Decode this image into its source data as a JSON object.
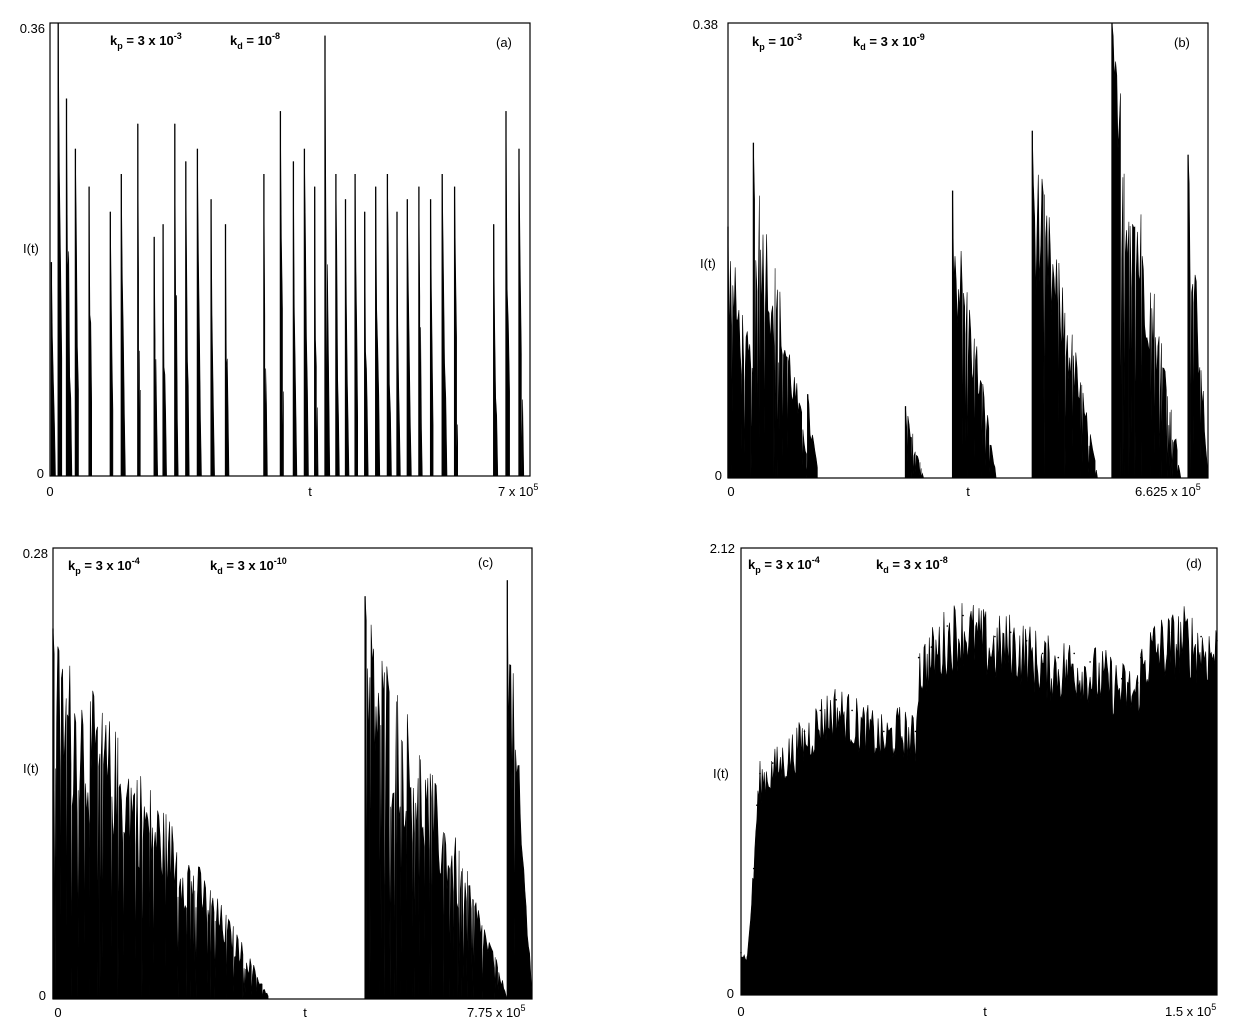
{
  "figure": {
    "panels": [
      {
        "panel_label": "(a)",
        "ylabel": "I(t)",
        "xlabel": "t",
        "y_top": "0.36",
        "y_bottom": "0",
        "x_left": "0",
        "x_right_mant": "7 x 10",
        "x_right_exp": "5",
        "kp_val": "= 3 x 10",
        "kp_exp": "-3",
        "kd_val": "= 10",
        "kd_exp": "-8"
      },
      {
        "panel_label": "(b)",
        "ylabel": "I(t)",
        "xlabel": "t",
        "y_top": "0.38",
        "y_bottom": "0",
        "x_left": "0",
        "x_right_mant": "6.625 x 10",
        "x_right_exp": "5",
        "kp_val": "= 10",
        "kp_exp": "-3",
        "kd_val": "= 3 x 10",
        "kd_exp": "-9"
      },
      {
        "panel_label": "(c)",
        "ylabel": "I(t)",
        "xlabel": "t",
        "y_top": "0.28",
        "y_bottom": "0",
        "x_left": "0",
        "x_right_mant": "7.75 x 10",
        "x_right_exp": "5",
        "kp_val": "= 3 x 10",
        "kp_exp": "-4",
        "kd_val": "= 3 x 10",
        "kd_exp": "-10"
      },
      {
        "panel_label": "(d)",
        "ylabel": "I(t)",
        "xlabel": "t",
        "y_top": "2.12",
        "y_bottom": "0",
        "x_left": "0",
        "x_right_mant": "1.5 x 10",
        "x_right_exp": "5",
        "kp_val": "= 3 x 10",
        "kp_exp": "-4",
        "kd_val": "= 3 x 10",
        "kd_exp": "-8"
      }
    ]
  },
  "chart_data": [
    {
      "type": "bar",
      "title": "",
      "xlabel": "t",
      "ylabel": "I(t)",
      "xlim": [
        0,
        700000
      ],
      "ylim": [
        0,
        0.36
      ],
      "grid": false,
      "annotation": "kp = 3 x 10^-3, kd = 10^-8",
      "bursts": [
        {
          "t": 2000,
          "peak": 0.17,
          "duration": 6000
        },
        {
          "t": 12000,
          "peak": 0.36,
          "duration": 7000
        },
        {
          "t": 24000,
          "peak": 0.3,
          "duration": 8000
        },
        {
          "t": 37000,
          "peak": 0.26,
          "duration": 6000
        },
        {
          "t": 57000,
          "peak": 0.23,
          "duration": 5000
        },
        {
          "t": 88000,
          "peak": 0.21,
          "duration": 5000
        },
        {
          "t": 104000,
          "peak": 0.24,
          "duration": 6000
        },
        {
          "t": 128000,
          "peak": 0.28,
          "duration": 5000
        },
        {
          "t": 152000,
          "peak": 0.19,
          "duration": 5000
        },
        {
          "t": 165000,
          "peak": 0.2,
          "duration": 5000
        },
        {
          "t": 182000,
          "peak": 0.28,
          "duration": 5000
        },
        {
          "t": 198000,
          "peak": 0.25,
          "duration": 5000
        },
        {
          "t": 215000,
          "peak": 0.26,
          "duration": 6000
        },
        {
          "t": 235000,
          "peak": 0.22,
          "duration": 5000
        },
        {
          "t": 256000,
          "peak": 0.2,
          "duration": 5000
        },
        {
          "t": 312000,
          "peak": 0.24,
          "duration": 5000
        },
        {
          "t": 336000,
          "peak": 0.29,
          "duration": 6000
        },
        {
          "t": 355000,
          "peak": 0.25,
          "duration": 5000
        },
        {
          "t": 371000,
          "peak": 0.26,
          "duration": 6000
        },
        {
          "t": 386000,
          "peak": 0.23,
          "duration": 5000
        },
        {
          "t": 401000,
          "peak": 0.35,
          "duration": 7000
        },
        {
          "t": 417000,
          "peak": 0.24,
          "duration": 5000
        },
        {
          "t": 431000,
          "peak": 0.22,
          "duration": 5000
        },
        {
          "t": 445000,
          "peak": 0.24,
          "duration": 5000
        },
        {
          "t": 459000,
          "peak": 0.21,
          "duration": 5000
        },
        {
          "t": 475000,
          "peak": 0.23,
          "duration": 6000
        },
        {
          "t": 492000,
          "peak": 0.24,
          "duration": 6000
        },
        {
          "t": 506000,
          "peak": 0.21,
          "duration": 5000
        },
        {
          "t": 521000,
          "peak": 0.22,
          "duration": 6000
        },
        {
          "t": 538000,
          "peak": 0.23,
          "duration": 5000
        },
        {
          "t": 555000,
          "peak": 0.22,
          "duration": 5000
        },
        {
          "t": 572000,
          "peak": 0.24,
          "duration": 7000
        },
        {
          "t": 590000,
          "peak": 0.23,
          "duration": 6000
        },
        {
          "t": 647000,
          "peak": 0.2,
          "duration": 6000
        },
        {
          "t": 665000,
          "peak": 0.29,
          "duration": 7000
        },
        {
          "t": 684000,
          "peak": 0.26,
          "duration": 7000
        }
      ]
    },
    {
      "type": "bar",
      "title": "",
      "xlabel": "t",
      "ylabel": "I(t)",
      "xlim": [
        0,
        662500
      ],
      "ylim": [
        0,
        0.38
      ],
      "grid": false,
      "annotation": "kp = 10^-3, kd = 3 x 10^-9",
      "bursts": [
        {
          "t": 0,
          "peak": 0.21,
          "duration": 60000
        },
        {
          "t": 35000,
          "peak": 0.28,
          "duration": 80000
        },
        {
          "t": 110000,
          "peak": 0.07,
          "duration": 15000
        },
        {
          "t": 245000,
          "peak": 0.06,
          "duration": 25000
        },
        {
          "t": 310000,
          "peak": 0.24,
          "duration": 60000
        },
        {
          "t": 420000,
          "peak": 0.29,
          "duration": 90000
        },
        {
          "t": 530000,
          "peak": 0.38,
          "duration": 95000
        },
        {
          "t": 635000,
          "peak": 0.27,
          "duration": 30000
        }
      ]
    },
    {
      "type": "bar",
      "title": "",
      "xlabel": "t",
      "ylabel": "I(t)",
      "xlim": [
        0,
        775000
      ],
      "ylim": [
        0,
        0.28
      ],
      "grid": false,
      "annotation": "kp = 3 x 10^-4, kd = 3 x 10^-10",
      "bursts": [
        {
          "t": 0,
          "peak": 0.23,
          "duration": 350000
        },
        {
          "t": 505000,
          "peak": 0.25,
          "duration": 230000
        },
        {
          "t": 735000,
          "peak": 0.26,
          "duration": 40000
        }
      ]
    },
    {
      "type": "area",
      "title": "",
      "xlabel": "t",
      "ylabel": "I(t)",
      "xlim": [
        0,
        150000
      ],
      "ylim": [
        0,
        2.12
      ],
      "grid": false,
      "annotation": "kp = 3 x 10^-4, kd = 3 x 10^-8",
      "x": [
        0,
        2000,
        4000,
        5000,
        6000,
        10000,
        20000,
        25000,
        30000,
        35000,
        40000,
        45000,
        50000,
        55000,
        56000,
        60000,
        65000,
        70000,
        75000,
        80000,
        85000,
        90000,
        95000,
        100000,
        105000,
        110000,
        115000,
        120000,
        125000,
        126000,
        130000,
        135000,
        140000,
        145000,
        150000
      ],
      "y": [
        0.2,
        0.18,
        0.6,
        0.9,
        1.05,
        1.1,
        1.25,
        1.35,
        1.4,
        1.35,
        1.3,
        1.25,
        1.3,
        1.25,
        1.6,
        1.65,
        1.75,
        1.8,
        1.75,
        1.7,
        1.72,
        1.68,
        1.62,
        1.6,
        1.62,
        1.58,
        1.55,
        1.5,
        1.48,
        1.6,
        1.7,
        1.72,
        1.75,
        1.7,
        1.68
      ]
    }
  ]
}
